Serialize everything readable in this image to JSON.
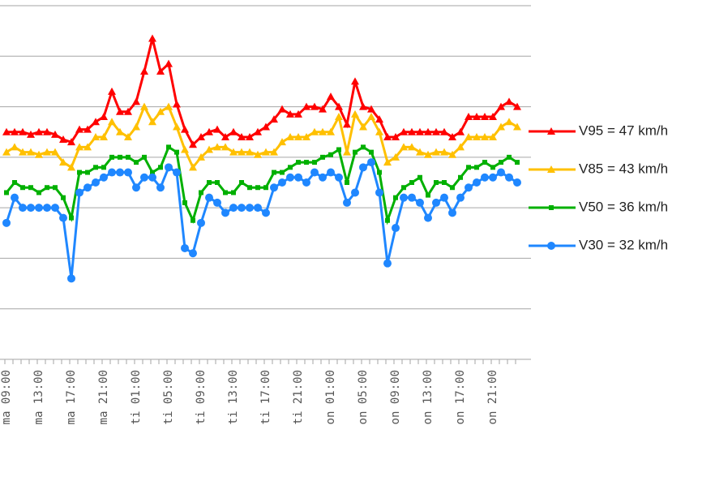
{
  "chart_data": {
    "type": "line",
    "categories": [
      "ma 09:00",
      null,
      null,
      null,
      "ma 13:00",
      null,
      null,
      null,
      "ma 17:00",
      null,
      null,
      null,
      "ma 21:00",
      null,
      null,
      null,
      "ti 01:00",
      null,
      null,
      null,
      "ti 05:00",
      null,
      null,
      null,
      "ti 09:00",
      null,
      null,
      null,
      "ti 13:00",
      null,
      null,
      null,
      "ti 17:00",
      null,
      null,
      null,
      "ti 21:00",
      null,
      null,
      null,
      "on 01:00",
      null,
      null,
      null,
      "on 05:00",
      null,
      null,
      null,
      "on 09:00",
      null,
      null,
      null,
      "on 13:00",
      null,
      null,
      null,
      "on 17:00",
      null,
      null,
      null,
      "on 21:00",
      null,
      null,
      null
    ],
    "series": [
      {
        "name": "V95 = 47  km/h",
        "color": "#ff0000",
        "marker": "triangle",
        "values": [
          45,
          45,
          45,
          44.5,
          45,
          45,
          44.5,
          43.5,
          43,
          45.5,
          45.5,
          47,
          48,
          53,
          49,
          49,
          51,
          57,
          63.5,
          57,
          58.5,
          50.5,
          45.5,
          42.5,
          44,
          45,
          45.5,
          44,
          45,
          44,
          44,
          45,
          46,
          47.5,
          49.5,
          48.5,
          48.5,
          50,
          50,
          49.5,
          52,
          50,
          46.5,
          55,
          50,
          49.5,
          47.5,
          44,
          44,
          45,
          45,
          45,
          45,
          45,
          45,
          44,
          45,
          48,
          48,
          48,
          48,
          50,
          51,
          50
        ]
      },
      {
        "name": "V85 = 43  km/h",
        "color": "#ffc000",
        "marker": "triangle",
        "values": [
          41,
          42,
          41,
          41,
          40.5,
          41,
          41,
          39,
          38,
          42,
          42,
          44,
          44,
          47,
          45,
          44,
          46,
          50,
          47,
          49,
          50,
          46,
          41.5,
          38,
          40,
          41.5,
          42,
          42,
          41,
          41,
          41,
          40.5,
          41,
          41,
          43,
          44,
          44,
          44,
          45,
          45,
          45,
          48,
          41,
          48.5,
          46,
          48,
          45,
          39,
          40,
          42,
          42,
          41,
          40.5,
          41,
          41,
          40.5,
          42,
          44,
          44,
          44,
          44,
          46,
          47,
          46
        ]
      },
      {
        "name": "V50 = 36  km/h",
        "color": "#00b000",
        "marker": "square",
        "values": [
          33,
          35,
          34,
          34,
          33,
          34,
          34,
          32,
          28,
          37,
          37,
          38,
          38,
          40,
          40,
          40,
          39,
          40,
          37,
          38,
          42,
          41,
          31,
          27.5,
          33,
          35,
          35,
          33,
          33,
          35,
          34,
          34,
          34,
          37,
          37,
          38,
          39,
          39,
          39,
          40,
          40.5,
          41.5,
          35,
          41,
          42,
          41,
          37,
          27.5,
          32,
          34,
          35,
          36,
          32.5,
          35,
          35,
          34,
          36,
          38,
          38,
          39,
          38,
          39,
          40,
          39
        ]
      },
      {
        "name": "V30 = 32  km/h",
        "color": "#1f87ff",
        "marker": "circle",
        "values": [
          27,
          32,
          30,
          30,
          30,
          30,
          30,
          28,
          16,
          33,
          34,
          35,
          36,
          37,
          37,
          37,
          34,
          36,
          36,
          34,
          38,
          37,
          22,
          21,
          27,
          32,
          31,
          29,
          30,
          30,
          30,
          30,
          29,
          34,
          35,
          36,
          36,
          35,
          37,
          36,
          37,
          36,
          31,
          33,
          38,
          39,
          33,
          19,
          26,
          32,
          32,
          31,
          28,
          31,
          32,
          29,
          32,
          34,
          35,
          36,
          36,
          37,
          36,
          35
        ]
      }
    ],
    "ylim": [
      0,
      70
    ],
    "yticks": [
      0,
      10,
      20,
      30,
      40,
      50,
      60,
      70
    ],
    "grid": true
  }
}
